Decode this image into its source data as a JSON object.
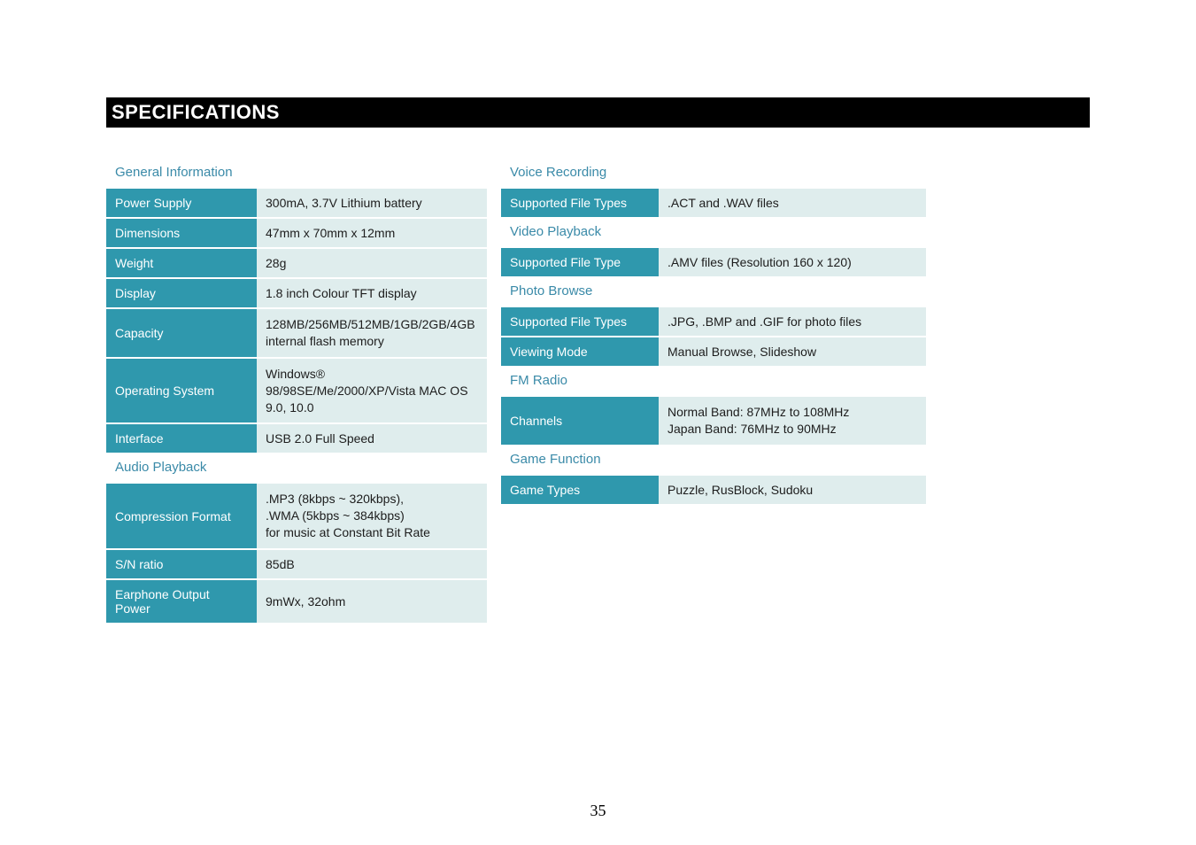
{
  "title": "SPECIFICATIONS",
  "page_number": "35",
  "colors": {
    "title_bg": "#000000",
    "title_fg": "#ffffff",
    "section_header_fg": "#3a8aa8",
    "label_bg": "#2f98ad",
    "label_fg": "#ffffff",
    "value_bg": "#dfeded",
    "value_fg": "#1d1d1d",
    "page_bg": "#ffffff"
  },
  "left": {
    "general": {
      "header": "General Information",
      "rows": {
        "power_supply": {
          "label": "Power Supply",
          "value": "300mA, 3.7V Lithium battery"
        },
        "dimensions": {
          "label": "Dimensions",
          "value": "47mm x 70mm x 12mm"
        },
        "weight": {
          "label": "Weight",
          "value": "28g"
        },
        "display": {
          "label": "Display",
          "value": "1.8 inch Colour TFT display"
        },
        "capacity": {
          "label": "Capacity",
          "value": "128MB/256MB/512MB/1GB/2GB/4GB internal flash memory"
        },
        "os": {
          "label": "Operating System",
          "value": "Windows® 98/98SE/Me/2000/XP/Vista MAC OS 9.0, 10.0"
        },
        "interface": {
          "label": "Interface",
          "value": "USB 2.0 Full Speed"
        }
      }
    },
    "audio": {
      "header": "Audio Playback",
      "rows": {
        "compression": {
          "label": "Compression Format",
          "value": ".MP3 (8kbps ~ 320kbps),\n.WMA (5kbps ~ 384kbps)\nfor music at Constant Bit Rate"
        },
        "sn_ratio": {
          "label": "S/N ratio",
          "value": "85dB"
        },
        "earphone": {
          "label": "Earphone Output Power",
          "value": "9mWx, 32ohm"
        }
      }
    }
  },
  "right": {
    "voice": {
      "header": "Voice Recording",
      "rows": {
        "types": {
          "label": "Supported File Types",
          "value": ".ACT and .WAV files"
        }
      }
    },
    "video": {
      "header": "Video Playback",
      "rows": {
        "type": {
          "label": "Supported File Type",
          "value": ".AMV  files (Resolution 160 x 120)"
        }
      }
    },
    "photo": {
      "header": "Photo Browse",
      "rows": {
        "types": {
          "label": "Supported File Types",
          "value": ".JPG, .BMP and .GIF for photo files"
        },
        "mode": {
          "label": "Viewing Mode",
          "value": "Manual Browse, Slideshow"
        }
      }
    },
    "fm": {
      "header": "FM Radio",
      "rows": {
        "channels": {
          "label": "Channels",
          "value": "Normal Band: 87MHz to 108MHz\nJapan Band: 76MHz to 90MHz"
        }
      }
    },
    "game": {
      "header": "Game Function",
      "rows": {
        "types": {
          "label": "Game Types",
          "value": "Puzzle, RusBlock, Sudoku"
        }
      }
    }
  }
}
